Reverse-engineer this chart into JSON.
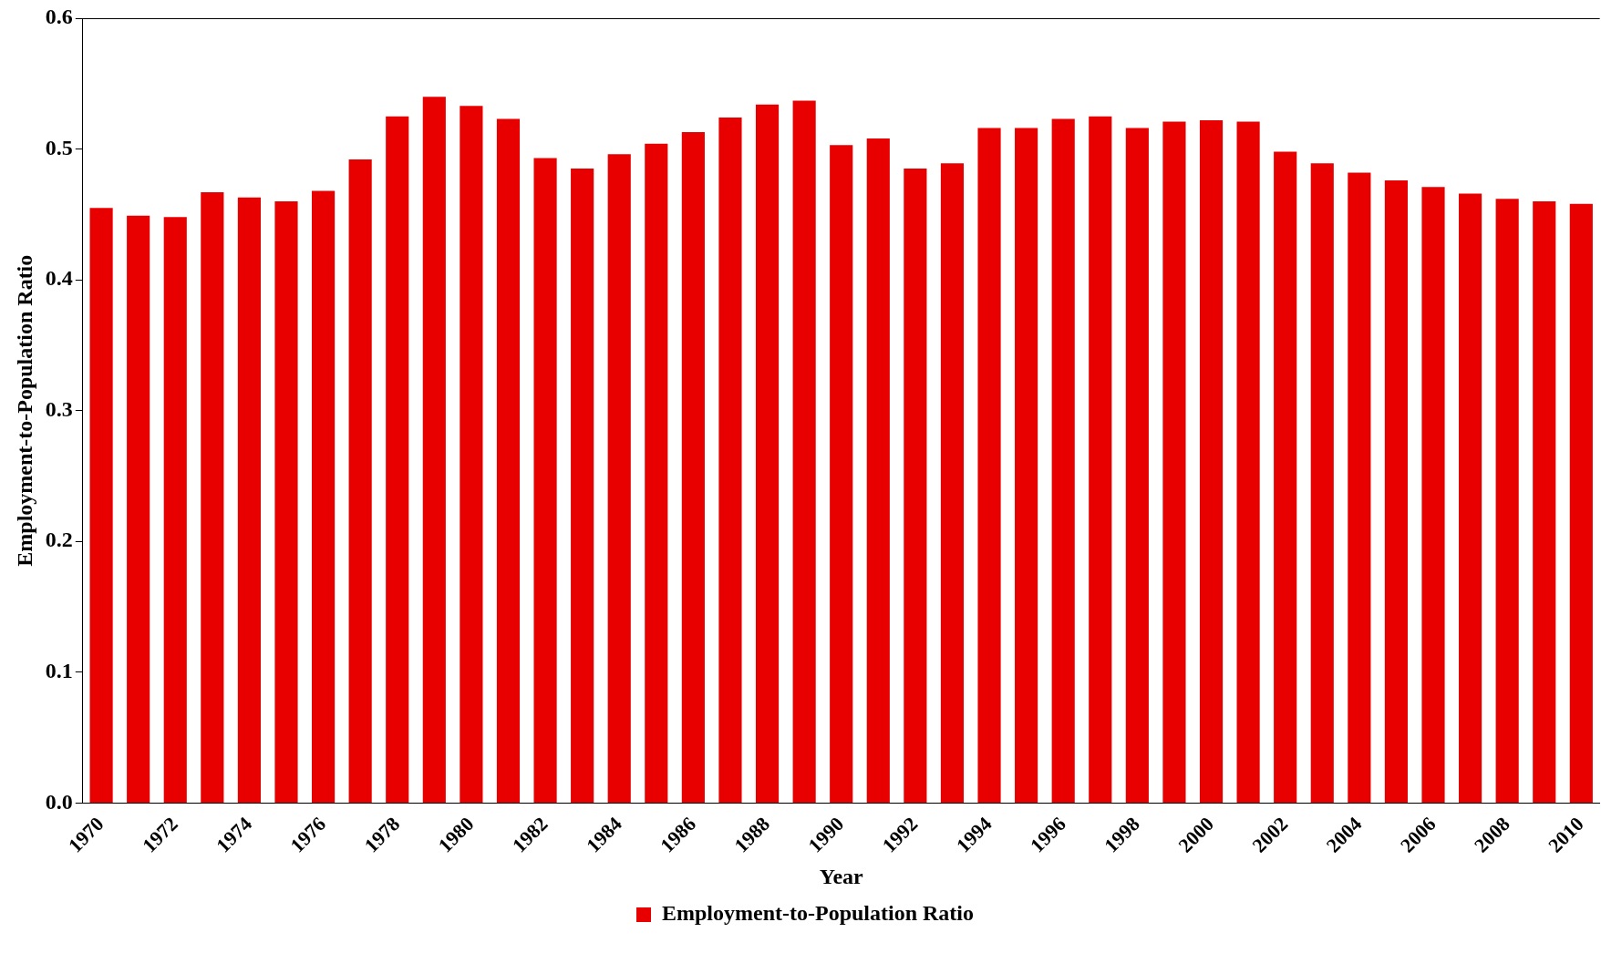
{
  "chart_data": {
    "type": "bar",
    "xlabel": "Year",
    "ylabel": "Employment-to-Population Ratio",
    "categories": [
      "1970",
      null,
      "1972",
      null,
      "1974",
      null,
      "1976",
      null,
      "1978",
      null,
      "1980",
      null,
      "1982",
      null,
      "1984",
      null,
      "1986",
      null,
      "1988",
      null,
      "1990",
      null,
      "1992",
      null,
      "1994",
      null,
      "1996",
      null,
      "1998",
      null,
      "2000",
      null,
      "2002",
      null,
      "2004",
      null,
      "2006",
      null,
      "2008",
      null,
      "2010"
    ],
    "series": [
      {
        "name": "Employment-to-Population Ratio",
        "color": "#e80000",
        "values": [
          0.455,
          0.449,
          0.448,
          0.467,
          0.463,
          0.46,
          0.468,
          0.492,
          0.525,
          0.54,
          0.533,
          0.523,
          0.493,
          0.485,
          0.496,
          0.504,
          0.513,
          0.524,
          0.534,
          0.537,
          0.503,
          0.508,
          0.485,
          0.489,
          0.516,
          0.516,
          0.523,
          0.525,
          0.516,
          0.521,
          0.522,
          0.521,
          0.498,
          0.489,
          0.482,
          0.476,
          0.471,
          0.466,
          0.462,
          0.46,
          0.458
        ]
      }
    ],
    "ylim": [
      0,
      0.6
    ],
    "yticks": [
      {
        "value": 0,
        "label": "0.0"
      },
      {
        "value": 0.1,
        "label": "0.1"
      },
      {
        "value": 0.2,
        "label": "0.2"
      },
      {
        "value": 0.3,
        "label": "0.3"
      },
      {
        "value": 0.4,
        "label": "0.4"
      },
      {
        "value": 0.5,
        "label": "0.5"
      },
      {
        "value": 0.6,
        "label": "0.6"
      }
    ],
    "grid": false,
    "legend": "bottom"
  }
}
